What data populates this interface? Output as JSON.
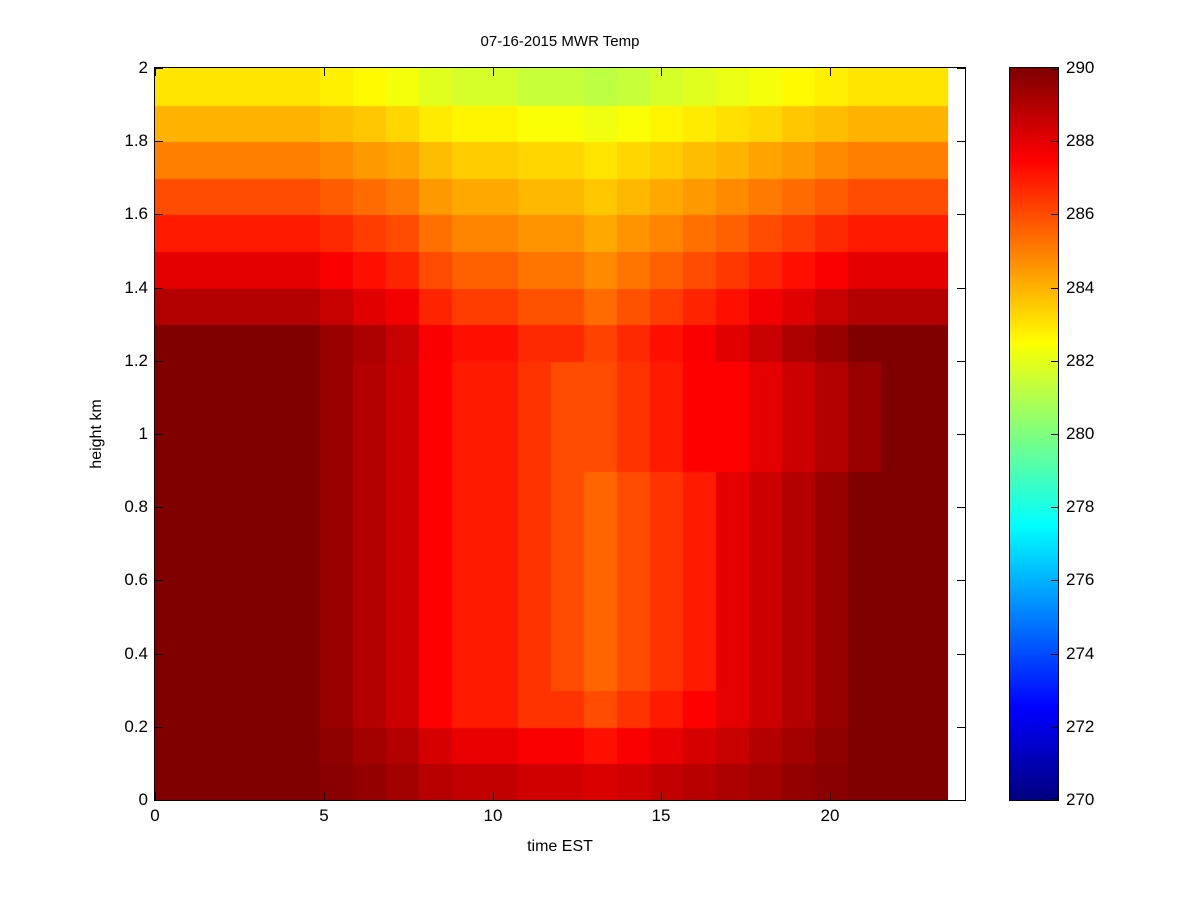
{
  "figure": {
    "background": "#ffffff",
    "axis_color": "#000000"
  },
  "chart_data": {
    "type": "heatmap",
    "title": "07-16-2015 MWR Temp",
    "xlabel": "time EST",
    "ylabel": "height km",
    "xlim": [
      0,
      24
    ],
    "ylim": [
      0,
      2
    ],
    "x_data_range": [
      0,
      23.5
    ],
    "x_ticks": [
      0,
      5,
      10,
      15,
      20
    ],
    "y_ticks": [
      0,
      0.2,
      0.4,
      0.6,
      0.8,
      1,
      1.2,
      1.4,
      1.6,
      1.8,
      2
    ],
    "colormap": "jet",
    "clim": [
      270,
      290
    ],
    "colorbar_ticks": [
      270,
      272,
      274,
      276,
      278,
      280,
      282,
      284,
      286,
      288,
      290
    ],
    "rows_bottom_to_top": true,
    "row_height_km": 0.1,
    "n_rows": 20,
    "n_cols": 24,
    "values": [
      [
        290,
        290,
        290,
        290,
        290,
        289.8,
        289.6,
        289.3,
        288.9,
        288.7,
        288.7,
        288.4,
        288.4,
        288.2,
        288.4,
        288.7,
        288.9,
        289.1,
        289.3,
        289.6,
        289.8,
        290,
        290,
        290
      ],
      [
        290,
        290,
        290,
        290,
        290,
        289.7,
        289.3,
        289,
        288.3,
        287.9,
        287.9,
        287.6,
        287.6,
        287.2,
        287.6,
        287.9,
        288.3,
        288.6,
        289,
        289.3,
        289.7,
        290,
        290,
        290
      ],
      [
        290,
        290,
        290,
        290,
        290,
        289.5,
        289,
        288.5,
        287.5,
        287,
        287,
        286.5,
        286.5,
        286,
        286.5,
        287,
        287.5,
        288,
        288.5,
        289,
        289.5,
        290,
        290,
        290
      ],
      [
        290,
        290,
        290,
        290,
        290,
        289.5,
        289,
        288.5,
        287.5,
        287,
        287,
        286.5,
        286,
        285.5,
        286,
        286.5,
        287,
        288,
        288.5,
        289,
        289.5,
        290,
        290,
        290
      ],
      [
        290,
        290,
        290,
        290,
        290,
        289.5,
        289,
        288.5,
        287.5,
        287,
        287,
        286.5,
        286,
        285.5,
        286,
        286.5,
        287,
        288,
        288.5,
        289,
        289.5,
        290,
        290,
        290
      ],
      [
        290,
        290,
        290,
        290,
        290,
        289.5,
        289,
        288.5,
        287.5,
        287,
        287,
        286.5,
        286,
        285.5,
        286,
        286.5,
        287,
        288,
        288.5,
        289,
        289.5,
        290,
        290,
        290
      ],
      [
        290,
        290,
        290,
        290,
        290,
        289.5,
        289,
        288.5,
        287.5,
        287,
        287,
        286.5,
        286,
        285.5,
        286,
        286.5,
        287,
        288,
        288.5,
        289,
        289.5,
        290,
        290,
        290
      ],
      [
        290,
        290,
        290,
        290,
        290,
        289.5,
        289,
        288.5,
        287.5,
        287,
        287,
        286.5,
        286,
        285.5,
        286,
        286.5,
        287,
        288,
        288.5,
        289,
        289.5,
        290,
        290,
        290
      ],
      [
        290,
        290,
        290,
        290,
        290,
        289.5,
        289,
        288.5,
        287.5,
        287,
        287,
        286.5,
        286,
        285.5,
        286,
        286.5,
        287,
        288,
        288.5,
        289,
        289.5,
        290,
        290,
        290
      ],
      [
        290,
        290,
        290,
        290,
        290,
        289.5,
        289,
        288.5,
        287.5,
        287,
        287,
        286.5,
        286,
        286,
        286.5,
        287,
        287.5,
        287.5,
        288,
        288.5,
        289,
        289.5,
        290,
        290
      ],
      [
        290,
        290,
        290,
        290,
        290,
        289.5,
        289,
        288.5,
        287.5,
        287,
        287,
        286.5,
        286,
        286,
        286.5,
        287,
        287.5,
        287.5,
        288,
        288.5,
        289,
        289.5,
        290,
        290
      ],
      [
        290,
        290,
        290,
        290,
        290,
        289.5,
        289,
        288.5,
        287.5,
        287,
        287,
        286.5,
        286,
        286,
        286.5,
        287,
        287.5,
        287.5,
        288,
        288.5,
        289,
        289.5,
        290,
        290
      ],
      [
        290,
        290,
        290,
        290,
        290,
        289.5,
        289.1,
        288.6,
        287.6,
        287.2,
        287.2,
        286.7,
        286.7,
        286.2,
        286.7,
        287.2,
        287.6,
        288.1,
        288.6,
        289.1,
        289.5,
        290,
        290,
        290
      ],
      [
        289,
        289,
        289,
        289,
        289,
        288.6,
        288.1,
        287.7,
        286.8,
        286.3,
        286.3,
        285.9,
        285.9,
        285.4,
        285.9,
        286.3,
        286.8,
        287.2,
        287.7,
        288.1,
        288.6,
        289,
        289,
        289
      ],
      [
        288,
        288,
        288,
        288,
        288,
        287.6,
        287.2,
        286.8,
        286,
        285.6,
        285.6,
        285.2,
        285.2,
        284.8,
        285.2,
        285.6,
        286,
        286.4,
        286.8,
        287.2,
        287.6,
        288,
        288,
        288
      ],
      [
        287,
        287,
        287,
        287,
        287,
        286.7,
        286.3,
        286,
        285.3,
        284.9,
        284.9,
        284.6,
        284.6,
        284.2,
        284.6,
        284.9,
        285.3,
        285.6,
        286,
        286.3,
        286.7,
        287,
        287,
        287
      ],
      [
        286,
        286,
        286,
        286,
        286,
        285.7,
        285.4,
        285.1,
        284.5,
        284.2,
        284.2,
        283.9,
        283.9,
        283.6,
        283.9,
        284.2,
        284.5,
        284.8,
        285.1,
        285.4,
        285.7,
        286,
        286,
        286
      ],
      [
        285,
        285,
        285,
        285,
        285,
        284.8,
        284.5,
        284.3,
        283.8,
        283.5,
        283.5,
        283.3,
        283.3,
        283,
        283.3,
        283.5,
        283.8,
        284,
        284.3,
        284.5,
        284.8,
        285,
        285,
        285
      ],
      [
        284,
        284,
        284,
        284,
        284,
        283.8,
        283.6,
        283.3,
        282.9,
        282.7,
        282.7,
        282.4,
        282.4,
        282.2,
        282.4,
        282.7,
        282.9,
        283.1,
        283.3,
        283.6,
        283.8,
        284,
        284,
        284
      ],
      [
        283,
        283,
        283,
        283,
        283,
        282.8,
        282.6,
        282.3,
        281.9,
        281.7,
        281.7,
        281.4,
        281.4,
        281.2,
        281.4,
        281.7,
        281.9,
        282.1,
        282.3,
        282.6,
        282.8,
        283,
        283,
        283
      ]
    ]
  }
}
